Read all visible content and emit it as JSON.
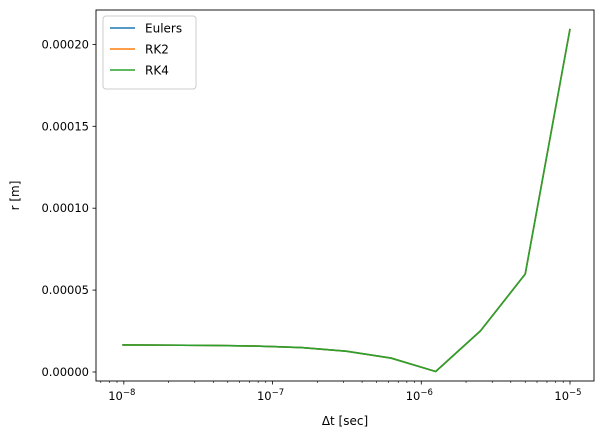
{
  "chart_data": {
    "type": "line",
    "xscale": "log",
    "xlabel": "Δt [sec]",
    "ylabel": "r [m]",
    "xlim": [
      6.5e-09,
      1.45e-05
    ],
    "ylim": [
      -5.5e-06,
      0.000221
    ],
    "x_ticks": [
      {
        "value": 1e-08,
        "base": "10",
        "exp": "−8"
      },
      {
        "value": 1e-07,
        "base": "10",
        "exp": "−7"
      },
      {
        "value": 1e-06,
        "base": "10",
        "exp": "−6"
      },
      {
        "value": 1e-05,
        "base": "10",
        "exp": "−5"
      }
    ],
    "y_ticks": [
      {
        "value": 0.0,
        "label": "0.00000"
      },
      {
        "value": 5e-05,
        "label": "0.00005"
      },
      {
        "value": 0.0001,
        "label": "0.00010"
      },
      {
        "value": 0.00015,
        "label": "0.00015"
      },
      {
        "value": 0.0002,
        "label": "0.00020"
      }
    ],
    "x": [
      9.77e-09,
      1.95e-08,
      3.91e-08,
      7.81e-08,
      1.5625e-07,
      3.125e-07,
      6.25e-07,
      1.25e-06,
      2.5e-06,
      5e-06,
      1e-05
    ],
    "series": [
      {
        "name": "Eulers",
        "color": "#1f77b4",
        "values": [
          1.65e-05,
          1.64e-05,
          1.62e-05,
          1.58e-05,
          1.49e-05,
          1.27e-05,
          8.5e-06,
          3e-07,
          2.51e-05,
          5.98e-05,
          0.0002095
        ]
      },
      {
        "name": "RK2",
        "color": "#ff7f0e",
        "values": [
          1.65e-05,
          1.64e-05,
          1.62e-05,
          1.58e-05,
          1.49e-05,
          1.27e-05,
          8.5e-06,
          3e-07,
          2.51e-05,
          5.98e-05,
          0.0002095
        ]
      },
      {
        "name": "RK4",
        "color": "#2ca02c",
        "values": [
          1.65e-05,
          1.64e-05,
          1.62e-05,
          1.58e-05,
          1.49e-05,
          1.27e-05,
          8.5e-06,
          3e-07,
          2.51e-05,
          5.98e-05,
          0.0002095
        ]
      }
    ],
    "legend_position": "top-left",
    "grid": false
  }
}
